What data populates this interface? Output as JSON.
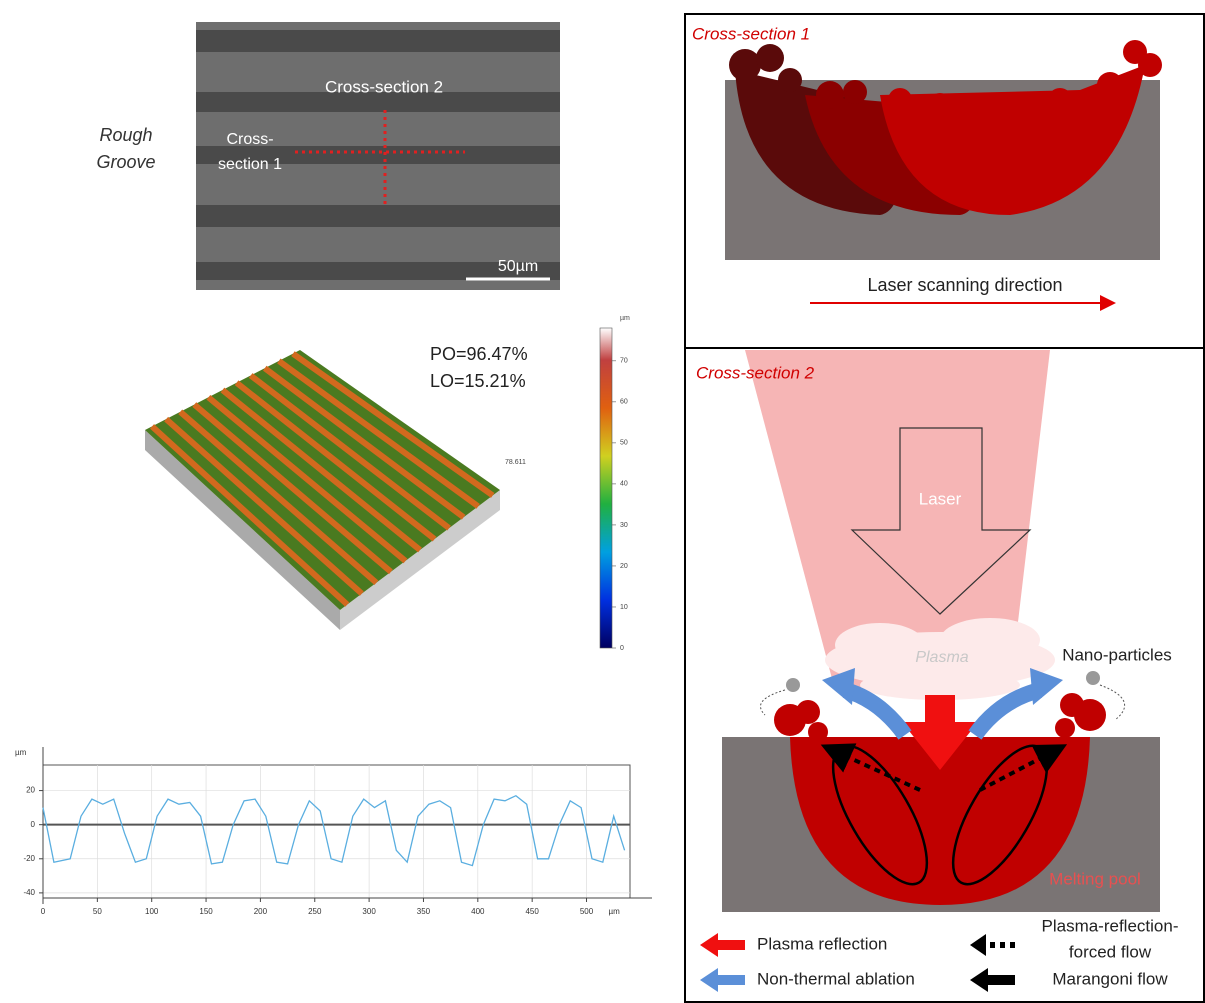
{
  "sem": {
    "sample_label": [
      "Rough",
      "Groove"
    ],
    "section_2_label": "Cross-section 2",
    "section_1_label": [
      "Cross-",
      "section 1"
    ],
    "scale_bar": "50µm"
  },
  "topography": {
    "po": "PO=96.47%",
    "lo": "LO=15.21%",
    "max_label": "78.611",
    "colorbar_unit": "µm",
    "colorbar_lim": [
      0,
      78
    ],
    "colorbar_ticks": [
      0,
      10,
      20,
      30,
      40,
      50,
      60,
      70
    ]
  },
  "chart_data": {
    "type": "line",
    "x": [
      0,
      10,
      25,
      35,
      45,
      55,
      65,
      75,
      85,
      95,
      105,
      115,
      125,
      135,
      145,
      155,
      165,
      175,
      185,
      195,
      205,
      215,
      225,
      235,
      245,
      255,
      265,
      275,
      285,
      295,
      305,
      315,
      325,
      335,
      345,
      355,
      365,
      375,
      385,
      395,
      405,
      415,
      425,
      435,
      445,
      455,
      465,
      475,
      485,
      495,
      505,
      515,
      525,
      535
    ],
    "series": [
      {
        "color": "#5aaee0",
        "values": [
          10,
          -22,
          -20,
          5,
          15,
          12,
          15,
          -5,
          -22,
          -20,
          5,
          15,
          12,
          13,
          5,
          -23,
          -22,
          0,
          14,
          15,
          5,
          -22,
          -23,
          0,
          14,
          8,
          -20,
          -22,
          5,
          15,
          10,
          14,
          -15,
          -22,
          5,
          12,
          14,
          10,
          -22,
          -24,
          0,
          15,
          14,
          17,
          12,
          -20,
          -20,
          0,
          14,
          10,
          -20,
          -22,
          5,
          -15
        ]
      }
    ],
    "xlim": [
      0,
      540
    ],
    "ylim": [
      -43,
      35
    ],
    "xticks": [
      0,
      50,
      100,
      150,
      200,
      250,
      300,
      350,
      400,
      450,
      500
    ],
    "yticks": [
      -40,
      -20,
      0,
      20
    ],
    "x_unit": "µm",
    "y_unit": "µm",
    "grid": true
  },
  "cross_section_1": {
    "title": "Cross-section 1",
    "arrow_label": "Laser scanning direction"
  },
  "cross_section_2": {
    "title": "Cross-section 2",
    "laser": "Laser",
    "plasma": "Plasma",
    "nano": "Nano-particles",
    "pool": "Melting pool"
  },
  "legend": {
    "plasma_reflection": "Plasma reflection",
    "non_thermal": "Non-thermal ablation",
    "plasma_forced": [
      "Plasma-reflection-",
      "forced flow"
    ],
    "marangoni": "Marangoni flow"
  }
}
